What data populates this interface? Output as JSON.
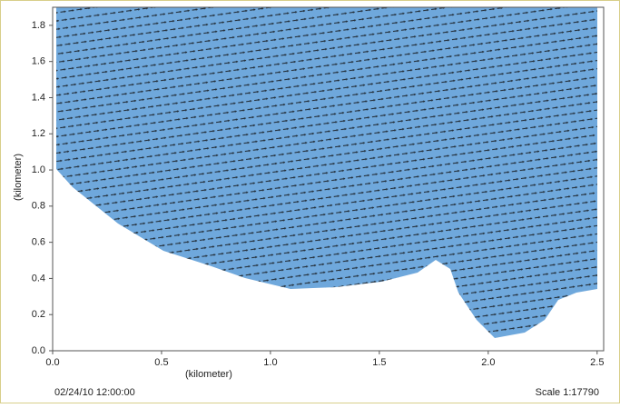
{
  "chart_data": {
    "type": "quiver",
    "x_label": "(kilometer)",
    "y_label": "(kilometer)",
    "xlim": [
      0,
      2.53
    ],
    "ylim": [
      0,
      1.9
    ],
    "xticks": [
      {
        "value": 0,
        "label": "0.0"
      },
      0.5,
      {
        "value": 1,
        "label": "1.0"
      },
      1.5,
      {
        "value": 2,
        "label": "2.0"
      },
      2.5
    ],
    "yticks": [
      {
        "value": 0,
        "label": "0.0"
      },
      0.2,
      0.4,
      0.6,
      0.8,
      {
        "value": 1,
        "label": "1.0"
      },
      1.2,
      1.4,
      1.6,
      1.8
    ],
    "timestamp": "02/24/10 12:00:00",
    "scale_text": "Scale 1:17790"
  }
}
